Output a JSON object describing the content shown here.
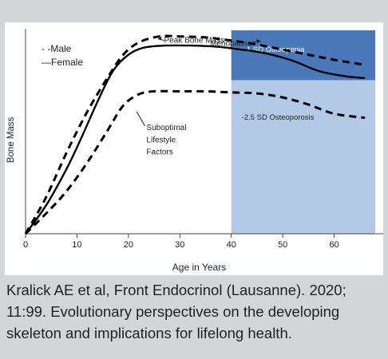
{
  "caption": "Kralick AE et al, Front Endocrinol (Lausanne). 2020; 11:99. Evolutionary perspectives on the developing skeleton and implications for lifelong health.",
  "chart_data": {
    "type": "line",
    "title": "",
    "xlabel": "Age in Years",
    "ylabel": "Bone Mass",
    "xlim": [
      0,
      70
    ],
    "ylim": [
      0,
      100
    ],
    "x_ticks": [
      "0",
      "10",
      "20",
      "30",
      "40",
      "50",
      "60"
    ],
    "legend": {
      "placement": "top-left",
      "entries": [
        {
          "label": "- -Male",
          "style": "dashed"
        },
        {
          "label": "—Female",
          "style": "solid"
        }
      ]
    },
    "series": [
      {
        "name": "Male",
        "style": "dashed",
        "color": "#000000",
        "points": [
          [
            0,
            0
          ],
          [
            4,
            18
          ],
          [
            8,
            40
          ],
          [
            12,
            60
          ],
          [
            16,
            77
          ],
          [
            19,
            88
          ],
          [
            22,
            94
          ],
          [
            26,
            97
          ],
          [
            30,
            97
          ],
          [
            35,
            96.5
          ],
          [
            40,
            95
          ],
          [
            45,
            93
          ],
          [
            50,
            90.5
          ],
          [
            55,
            88
          ],
          [
            60,
            85.5
          ],
          [
            66,
            83
          ]
        ]
      },
      {
        "name": "Female",
        "style": "solid",
        "color": "#000000",
        "points": [
          [
            0,
            0
          ],
          [
            4,
            14
          ],
          [
            8,
            32
          ],
          [
            11,
            48
          ],
          [
            14,
            65
          ],
          [
            17,
            80
          ],
          [
            20,
            88
          ],
          [
            23,
            91.5
          ],
          [
            27,
            92.5
          ],
          [
            32,
            92.5
          ],
          [
            37,
            92
          ],
          [
            42,
            90.5
          ],
          [
            47,
            88.5
          ],
          [
            52,
            85
          ],
          [
            57,
            80
          ],
          [
            62,
            77.5
          ],
          [
            66,
            76.5
          ]
        ]
      },
      {
        "name": "Suboptimal Lifestyle Factors",
        "style": "dashed",
        "color": "#000000",
        "points": [
          [
            0,
            0
          ],
          [
            4,
            10
          ],
          [
            8,
            21
          ],
          [
            12,
            35
          ],
          [
            16,
            51
          ],
          [
            19,
            63
          ],
          [
            22,
            68.5
          ],
          [
            25,
            70
          ],
          [
            30,
            70
          ],
          [
            35,
            70
          ],
          [
            40,
            69.5
          ],
          [
            45,
            69
          ],
          [
            50,
            67
          ],
          [
            55,
            63.5
          ],
          [
            60,
            59
          ],
          [
            66,
            57
          ]
        ]
      }
    ],
    "regions": [
      {
        "label": "-1 SD  Osteopenia",
        "x_range": [
          40,
          68
        ],
        "y_range": [
          75.5,
          100
        ],
        "color": "#4a78b8"
      },
      {
        "label": "-2.5 SD  Osteoporosis",
        "x_range": [
          40,
          68
        ],
        "y_range": [
          0,
          75.5
        ],
        "color": "#b3cae7"
      }
    ],
    "annotations": [
      {
        "text": "Peak Bone Mass",
        "x": 26,
        "y": 97,
        "arrow": true
      },
      {
        "text": "Menopause",
        "x": 43,
        "y": 94,
        "arrow": true
      },
      {
        "text": "Suboptimal",
        "x": 23.5,
        "y": 51
      },
      {
        "text": "Lifestyle",
        "x": 23.5,
        "y": 45
      },
      {
        "text": "Factors",
        "x": 23.5,
        "y": 39
      }
    ]
  }
}
